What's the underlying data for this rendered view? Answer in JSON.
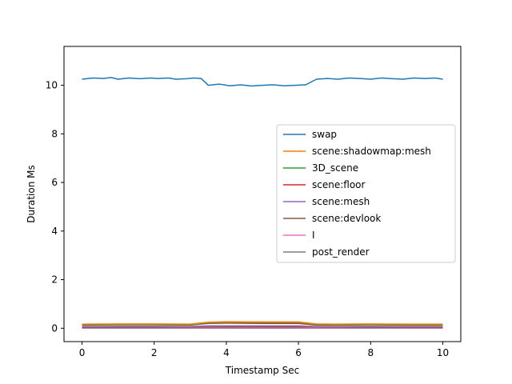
{
  "chart_data": {
    "type": "line",
    "title": "",
    "xlabel": "Timestamp Sec",
    "ylabel": "Duration Ms",
    "xlim": [
      -0.5,
      10.5
    ],
    "ylim": [
      -0.55,
      11.6
    ],
    "xticks": [
      0,
      2,
      4,
      6,
      8,
      10
    ],
    "yticks": [
      0,
      2,
      4,
      6,
      8,
      10
    ],
    "grid": false,
    "legend_position": "center-right",
    "series": [
      {
        "name": "swap",
        "color": "#1f77b4",
        "x": [
          0,
          0.3,
          0.6,
          0.8,
          1.0,
          1.3,
          1.6,
          1.9,
          2.1,
          2.4,
          2.6,
          2.9,
          3.1,
          3.3,
          3.5,
          3.8,
          4.1,
          4.4,
          4.7,
          5.0,
          5.3,
          5.6,
          5.9,
          6.2,
          6.5,
          6.8,
          7.1,
          7.4,
          7.7,
          8.0,
          8.3,
          8.6,
          8.9,
          9.2,
          9.5,
          9.8,
          10.0
        ],
        "y": [
          10.25,
          10.3,
          10.28,
          10.32,
          10.25,
          10.3,
          10.27,
          10.3,
          10.28,
          10.3,
          10.25,
          10.27,
          10.3,
          10.28,
          10.0,
          10.05,
          9.98,
          10.02,
          9.97,
          10.0,
          10.02,
          9.98,
          10.0,
          10.02,
          10.25,
          10.28,
          10.25,
          10.3,
          10.28,
          10.25,
          10.3,
          10.27,
          10.25,
          10.3,
          10.28,
          10.3,
          10.25
        ]
      },
      {
        "name": "scene:shadowmap:mesh",
        "color": "#ff7f0e",
        "x": [
          0,
          1,
          2,
          3,
          3.5,
          4,
          5,
          6,
          6.5,
          7,
          8,
          9,
          10
        ],
        "y": [
          0.17,
          0.18,
          0.18,
          0.17,
          0.25,
          0.27,
          0.26,
          0.26,
          0.18,
          0.17,
          0.18,
          0.17,
          0.17
        ]
      },
      {
        "name": "3D_scene",
        "color": "#2ca02c",
        "x": [
          0,
          1,
          2,
          3,
          3.5,
          4,
          5,
          6,
          6.5,
          7,
          8,
          9,
          10
        ],
        "y": [
          0.14,
          0.15,
          0.15,
          0.14,
          0.22,
          0.24,
          0.23,
          0.23,
          0.15,
          0.14,
          0.15,
          0.14,
          0.14
        ]
      },
      {
        "name": "scene:floor",
        "color": "#d62728",
        "x": [
          0,
          1,
          2,
          3,
          3.5,
          4,
          5,
          6,
          6.5,
          7,
          8,
          9,
          10
        ],
        "y": [
          0.13,
          0.14,
          0.14,
          0.13,
          0.2,
          0.21,
          0.2,
          0.2,
          0.13,
          0.13,
          0.14,
          0.13,
          0.13
        ]
      },
      {
        "name": "scene:mesh",
        "color": "#9467bd",
        "x": [
          0,
          1,
          2,
          3,
          3.5,
          4,
          5,
          6,
          6.5,
          7,
          8,
          9,
          10
        ],
        "y": [
          0.07,
          0.08,
          0.08,
          0.07,
          0.1,
          0.1,
          0.1,
          0.1,
          0.07,
          0.07,
          0.08,
          0.07,
          0.07
        ]
      },
      {
        "name": "scene:devlook",
        "color": "#8c564b",
        "x": [
          0,
          2,
          4,
          6,
          8,
          10
        ],
        "y": [
          0.04,
          0.04,
          0.05,
          0.05,
          0.04,
          0.04
        ]
      },
      {
        "name": "I",
        "color": "#e377c2",
        "x": [
          0,
          2,
          4,
          6,
          8,
          10
        ],
        "y": [
          0.02,
          0.02,
          0.02,
          0.02,
          0.02,
          0.02
        ]
      },
      {
        "name": "post_render",
        "color": "#7f7f7f",
        "x": [
          0,
          2,
          4,
          6,
          8,
          10
        ],
        "y": [
          0.0,
          0.0,
          0.0,
          0.0,
          0.0,
          0.0
        ]
      }
    ]
  }
}
